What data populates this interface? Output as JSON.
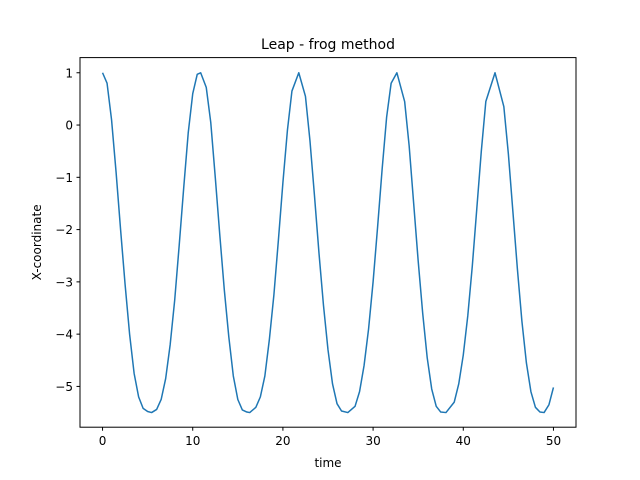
{
  "chart_data": {
    "type": "line",
    "title": "Leap - frog method",
    "xlabel": "time",
    "ylabel": "X-coordinate",
    "xlim": [
      -2.5,
      52.5
    ],
    "ylim": [
      -5.78,
      1.29
    ],
    "xticks": [
      0,
      10,
      20,
      30,
      40,
      50
    ],
    "xtick_labels": [
      "0",
      "10",
      "20",
      "30",
      "40",
      "50"
    ],
    "yticks": [
      1,
      0,
      -1,
      -2,
      -3,
      -4,
      -5
    ],
    "ytick_labels": [
      "1",
      "0",
      "−1",
      "−2",
      "−3",
      "−4",
      "−5"
    ],
    "grid": false,
    "series": [
      {
        "color": "#1f77b4",
        "x": [
          0,
          0.5,
          1,
          1.5,
          2,
          2.5,
          3,
          3.5,
          4,
          4.5,
          5,
          5.44,
          6,
          6.5,
          7,
          7.5,
          8,
          8.5,
          9,
          9.5,
          10,
          10.5,
          10.88,
          11.5,
          12,
          12.5,
          13,
          13.5,
          14,
          14.5,
          15,
          15.5,
          16,
          16.32,
          17,
          17.5,
          18,
          18.5,
          19,
          19.5,
          20,
          20.5,
          21,
          21.76,
          22.5,
          23,
          23.5,
          24,
          24.5,
          25,
          25.5,
          26,
          26.5,
          27.2,
          28,
          28.5,
          29,
          29.5,
          30,
          30.5,
          31,
          31.5,
          32,
          32.64,
          33.5,
          34,
          34.5,
          35,
          35.5,
          36,
          36.5,
          37,
          37.5,
          38.08,
          39,
          39.5,
          40,
          40.5,
          41,
          41.5,
          42,
          42.5,
          43.52,
          44.5,
          45,
          45.5,
          46,
          46.5,
          47,
          47.5,
          48,
          48.5,
          48.96,
          49.5,
          50
        ],
        "y": [
          1.0,
          0.8,
          0.1,
          -0.9,
          -2.0,
          -3.05,
          -4.0,
          -4.75,
          -5.2,
          -5.42,
          -5.48,
          -5.5,
          -5.44,
          -5.25,
          -4.85,
          -4.2,
          -3.35,
          -2.3,
          -1.2,
          -0.15,
          0.6,
          0.97,
          1.0,
          0.72,
          0.05,
          -1.0,
          -2.1,
          -3.15,
          -4.05,
          -4.8,
          -5.25,
          -5.45,
          -5.49,
          -5.5,
          -5.4,
          -5.2,
          -4.8,
          -4.1,
          -3.25,
          -2.2,
          -1.1,
          -0.1,
          0.65,
          1.0,
          0.55,
          -0.3,
          -1.35,
          -2.45,
          -3.45,
          -4.3,
          -4.95,
          -5.33,
          -5.47,
          -5.5,
          -5.38,
          -5.1,
          -4.6,
          -3.9,
          -3.0,
          -1.95,
          -0.85,
          0.15,
          0.8,
          1.0,
          0.45,
          -0.4,
          -1.5,
          -2.6,
          -3.6,
          -4.45,
          -5.05,
          -5.38,
          -5.49,
          -5.5,
          -5.3,
          -4.95,
          -4.4,
          -3.65,
          -2.7,
          -1.6,
          -0.5,
          0.45,
          1.0,
          0.35,
          -0.55,
          -1.65,
          -2.75,
          -3.75,
          -4.55,
          -5.1,
          -5.4,
          -5.49,
          -5.5,
          -5.35,
          -5.02
        ]
      }
    ]
  }
}
